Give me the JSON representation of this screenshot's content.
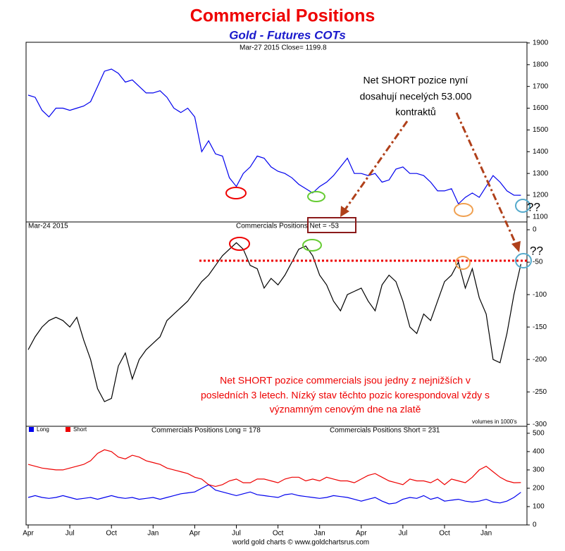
{
  "title": "Commercial Positions",
  "subtitle": "Gold - Futures COTs",
  "annotations": [
    "Net SHORT pozice nyní",
    "dosahují necelých 53.000",
    "kontraktů",
    "Net SHORT pozice commercials jsou jedny z nejnižších v",
    "posledních 3 letech. Nízký stav těchto pozic korespondoval vždy s",
    "významným cenovým dne na zlatě",
    "??",
    "??"
  ],
  "footer": "world gold charts © www.goldchartsrus.com",
  "chart_data": [
    {
      "type": "line",
      "header": "Mar-27 2015   Close= 1199.8",
      "color": "#0000ee",
      "ylim": [
        1077,
        1903
      ],
      "yticks": [
        1100,
        1200,
        1300,
        1400,
        1500,
        1600,
        1700,
        1800,
        1900
      ],
      "series": [
        {
          "name": "Gold",
          "color": "#0000ee",
          "values": [
            1660,
            1650,
            1590,
            1560,
            1600,
            1600,
            1590,
            1600,
            1610,
            1630,
            1700,
            1770,
            1780,
            1760,
            1720,
            1730,
            1700,
            1670,
            1670,
            1680,
            1650,
            1600,
            1580,
            1600,
            1560,
            1400,
            1450,
            1390,
            1380,
            1280,
            1240,
            1300,
            1330,
            1380,
            1370,
            1330,
            1310,
            1300,
            1280,
            1250,
            1230,
            1210,
            1240,
            1260,
            1290,
            1330,
            1370,
            1300,
            1300,
            1290,
            1300,
            1260,
            1270,
            1320,
            1330,
            1300,
            1300,
            1290,
            1260,
            1220,
            1220,
            1230,
            1160,
            1190,
            1210,
            1190,
            1240,
            1290,
            1260,
            1220,
            1200,
            1199.8
          ]
        }
      ]
    },
    {
      "type": "line",
      "date_label": "Mar-24 2015",
      "header": "Commercials Positions  Net = -53",
      "note": "volumes in 1000's",
      "ylim": [
        -303,
        12
      ],
      "yticks": [
        0,
        -50,
        -100,
        -150,
        -200,
        -250,
        -300
      ],
      "series": [
        {
          "name": "Net",
          "color": "#000000",
          "values": [
            -185,
            -165,
            -150,
            -140,
            -135,
            -140,
            -150,
            -135,
            -170,
            -200,
            -245,
            -265,
            -260,
            -210,
            -190,
            -230,
            -200,
            -185,
            -175,
            -165,
            -140,
            -130,
            -120,
            -110,
            -95,
            -80,
            -70,
            -55,
            -40,
            -30,
            -20,
            -30,
            -55,
            -60,
            -90,
            -75,
            -85,
            -70,
            -50,
            -30,
            -25,
            -40,
            -70,
            -85,
            -110,
            -125,
            -100,
            -95,
            -90,
            -110,
            -125,
            -85,
            -70,
            -80,
            -110,
            -150,
            -160,
            -130,
            -140,
            -110,
            -80,
            -70,
            -50,
            -90,
            -60,
            -105,
            -130,
            -200,
            -205,
            -160,
            -100,
            -53
          ]
        }
      ]
    },
    {
      "type": "line",
      "header_long": "Commercials Positions Long = 178",
      "header_short": "Commercials Positions Short = 231",
      "ylim": [
        0,
        538
      ],
      "yticks": [
        0,
        100,
        200,
        300,
        400,
        500
      ],
      "categories": [
        "Apr",
        null,
        null,
        null,
        null,
        null,
        "Jul",
        null,
        null,
        null,
        null,
        null,
        "Oct",
        null,
        null,
        null,
        null,
        null,
        "Jan",
        null,
        null,
        null,
        null,
        null,
        "Apr",
        null,
        null,
        null,
        null,
        null,
        "Jul",
        null,
        null,
        null,
        null,
        null,
        "Oct",
        null,
        null,
        null,
        null,
        null,
        "Jan",
        null,
        null,
        null,
        null,
        null,
        "Apr",
        null,
        null,
        null,
        null,
        null,
        "Jul",
        null,
        null,
        null,
        null,
        null,
        "Oct",
        null,
        null,
        null,
        null,
        null,
        "Jan",
        null,
        null,
        null,
        null,
        null
      ],
      "series": [
        {
          "name": "Long",
          "color": "#0000ee",
          "values": [
            150,
            160,
            150,
            145,
            150,
            160,
            150,
            140,
            145,
            150,
            140,
            150,
            160,
            150,
            145,
            150,
            140,
            145,
            150,
            140,
            150,
            160,
            170,
            175,
            180,
            200,
            220,
            190,
            180,
            170,
            160,
            170,
            180,
            165,
            160,
            155,
            150,
            165,
            170,
            160,
            155,
            150,
            145,
            150,
            160,
            155,
            150,
            140,
            130,
            140,
            150,
            130,
            115,
            120,
            140,
            150,
            145,
            160,
            140,
            150,
            130,
            135,
            140,
            130,
            125,
            130,
            140,
            125,
            120,
            130,
            150,
            178
          ]
        },
        {
          "name": "Short",
          "color": "#ee0000",
          "values": [
            330,
            320,
            310,
            305,
            300,
            300,
            310,
            320,
            330,
            350,
            390,
            410,
            400,
            370,
            360,
            380,
            370,
            350,
            340,
            330,
            310,
            300,
            290,
            280,
            260,
            250,
            220,
            210,
            220,
            240,
            250,
            230,
            230,
            250,
            250,
            240,
            230,
            250,
            260,
            260,
            240,
            250,
            240,
            260,
            250,
            240,
            240,
            230,
            250,
            270,
            280,
            260,
            240,
            230,
            220,
            250,
            240,
            240,
            230,
            250,
            220,
            250,
            240,
            230,
            260,
            300,
            320,
            290,
            260,
            240,
            230,
            231
          ]
        }
      ]
    }
  ]
}
